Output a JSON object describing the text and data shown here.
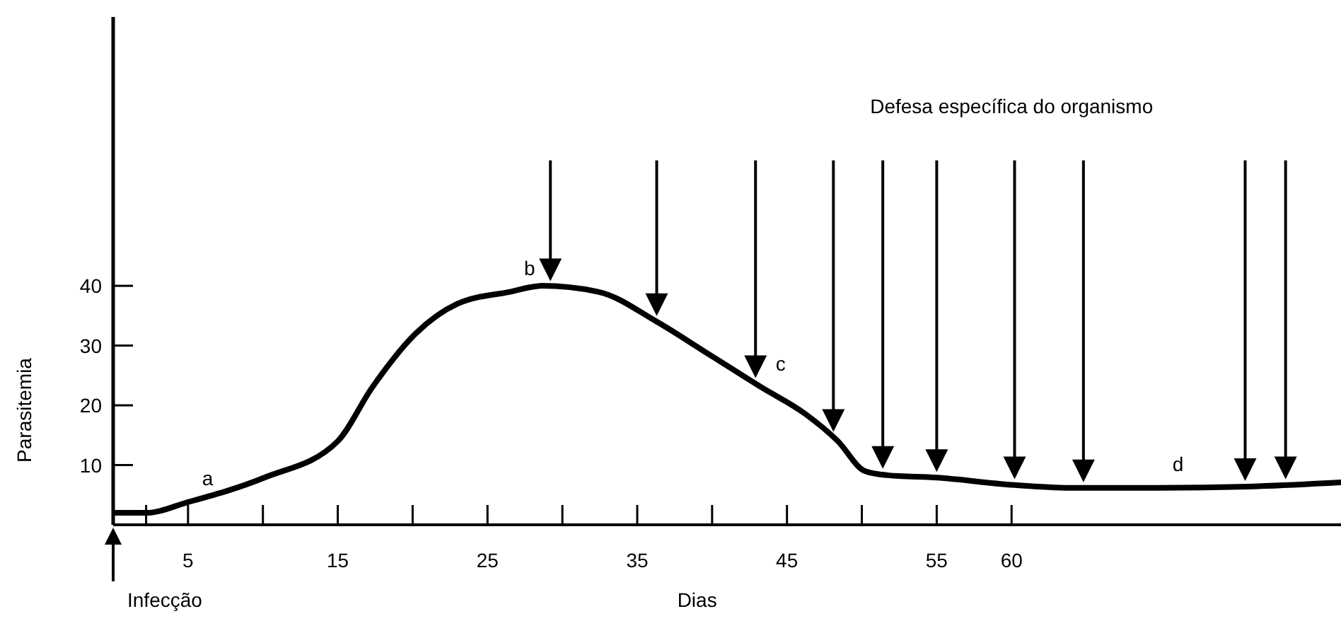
{
  "chart_data": {
    "type": "line",
    "xlabel": "Dias",
    "ylabel": "Parasitemia",
    "x": [
      0,
      2.2,
      5,
      10.1,
      15,
      17.3,
      20.2,
      23,
      26.5,
      28.6,
      32.4,
      36.3,
      39.5,
      43.3,
      46.2,
      48.4,
      50.2,
      51.7,
      55,
      60,
      63.9,
      69.8,
      75.8,
      82
    ],
    "series": [
      {
        "color": "#000000",
        "values": [
          2,
          2,
          3.8,
          7.9,
          14,
          23,
          32,
          37,
          39,
          40,
          39,
          34,
          29,
          23,
          18.6,
          14,
          9,
          8.3,
          7.9,
          6.7,
          6.2,
          6.2,
          6.4,
          7.1
        ]
      }
    ],
    "xlim": [
      0,
      82
    ],
    "ylim": [
      0,
      85
    ],
    "xticks": [
      {
        "value": 2.2,
        "label": null
      },
      5,
      {
        "value": 10,
        "label": null
      },
      15,
      {
        "value": 20,
        "label": null
      },
      25,
      {
        "value": 30,
        "label": null
      },
      35,
      {
        "value": 40,
        "label": null
      },
      45,
      {
        "value": 50,
        "label": null
      },
      55,
      60
    ],
    "yticks": [
      10,
      20,
      30,
      40
    ],
    "marker": "none",
    "line_style": "solid",
    "grid": false,
    "legend": false,
    "annotations": [
      "Defesa específica do organismo",
      "Infecção",
      {
        "text": "a",
        "x": 5,
        "y": 3.8
      },
      {
        "text": "b",
        "x": 26.5,
        "y": 39
      },
      {
        "text": "c",
        "x": 43.3,
        "y": 23
      },
      {
        "text": "d",
        "x": 69.8,
        "y": 6.2
      }
    ]
  }
}
